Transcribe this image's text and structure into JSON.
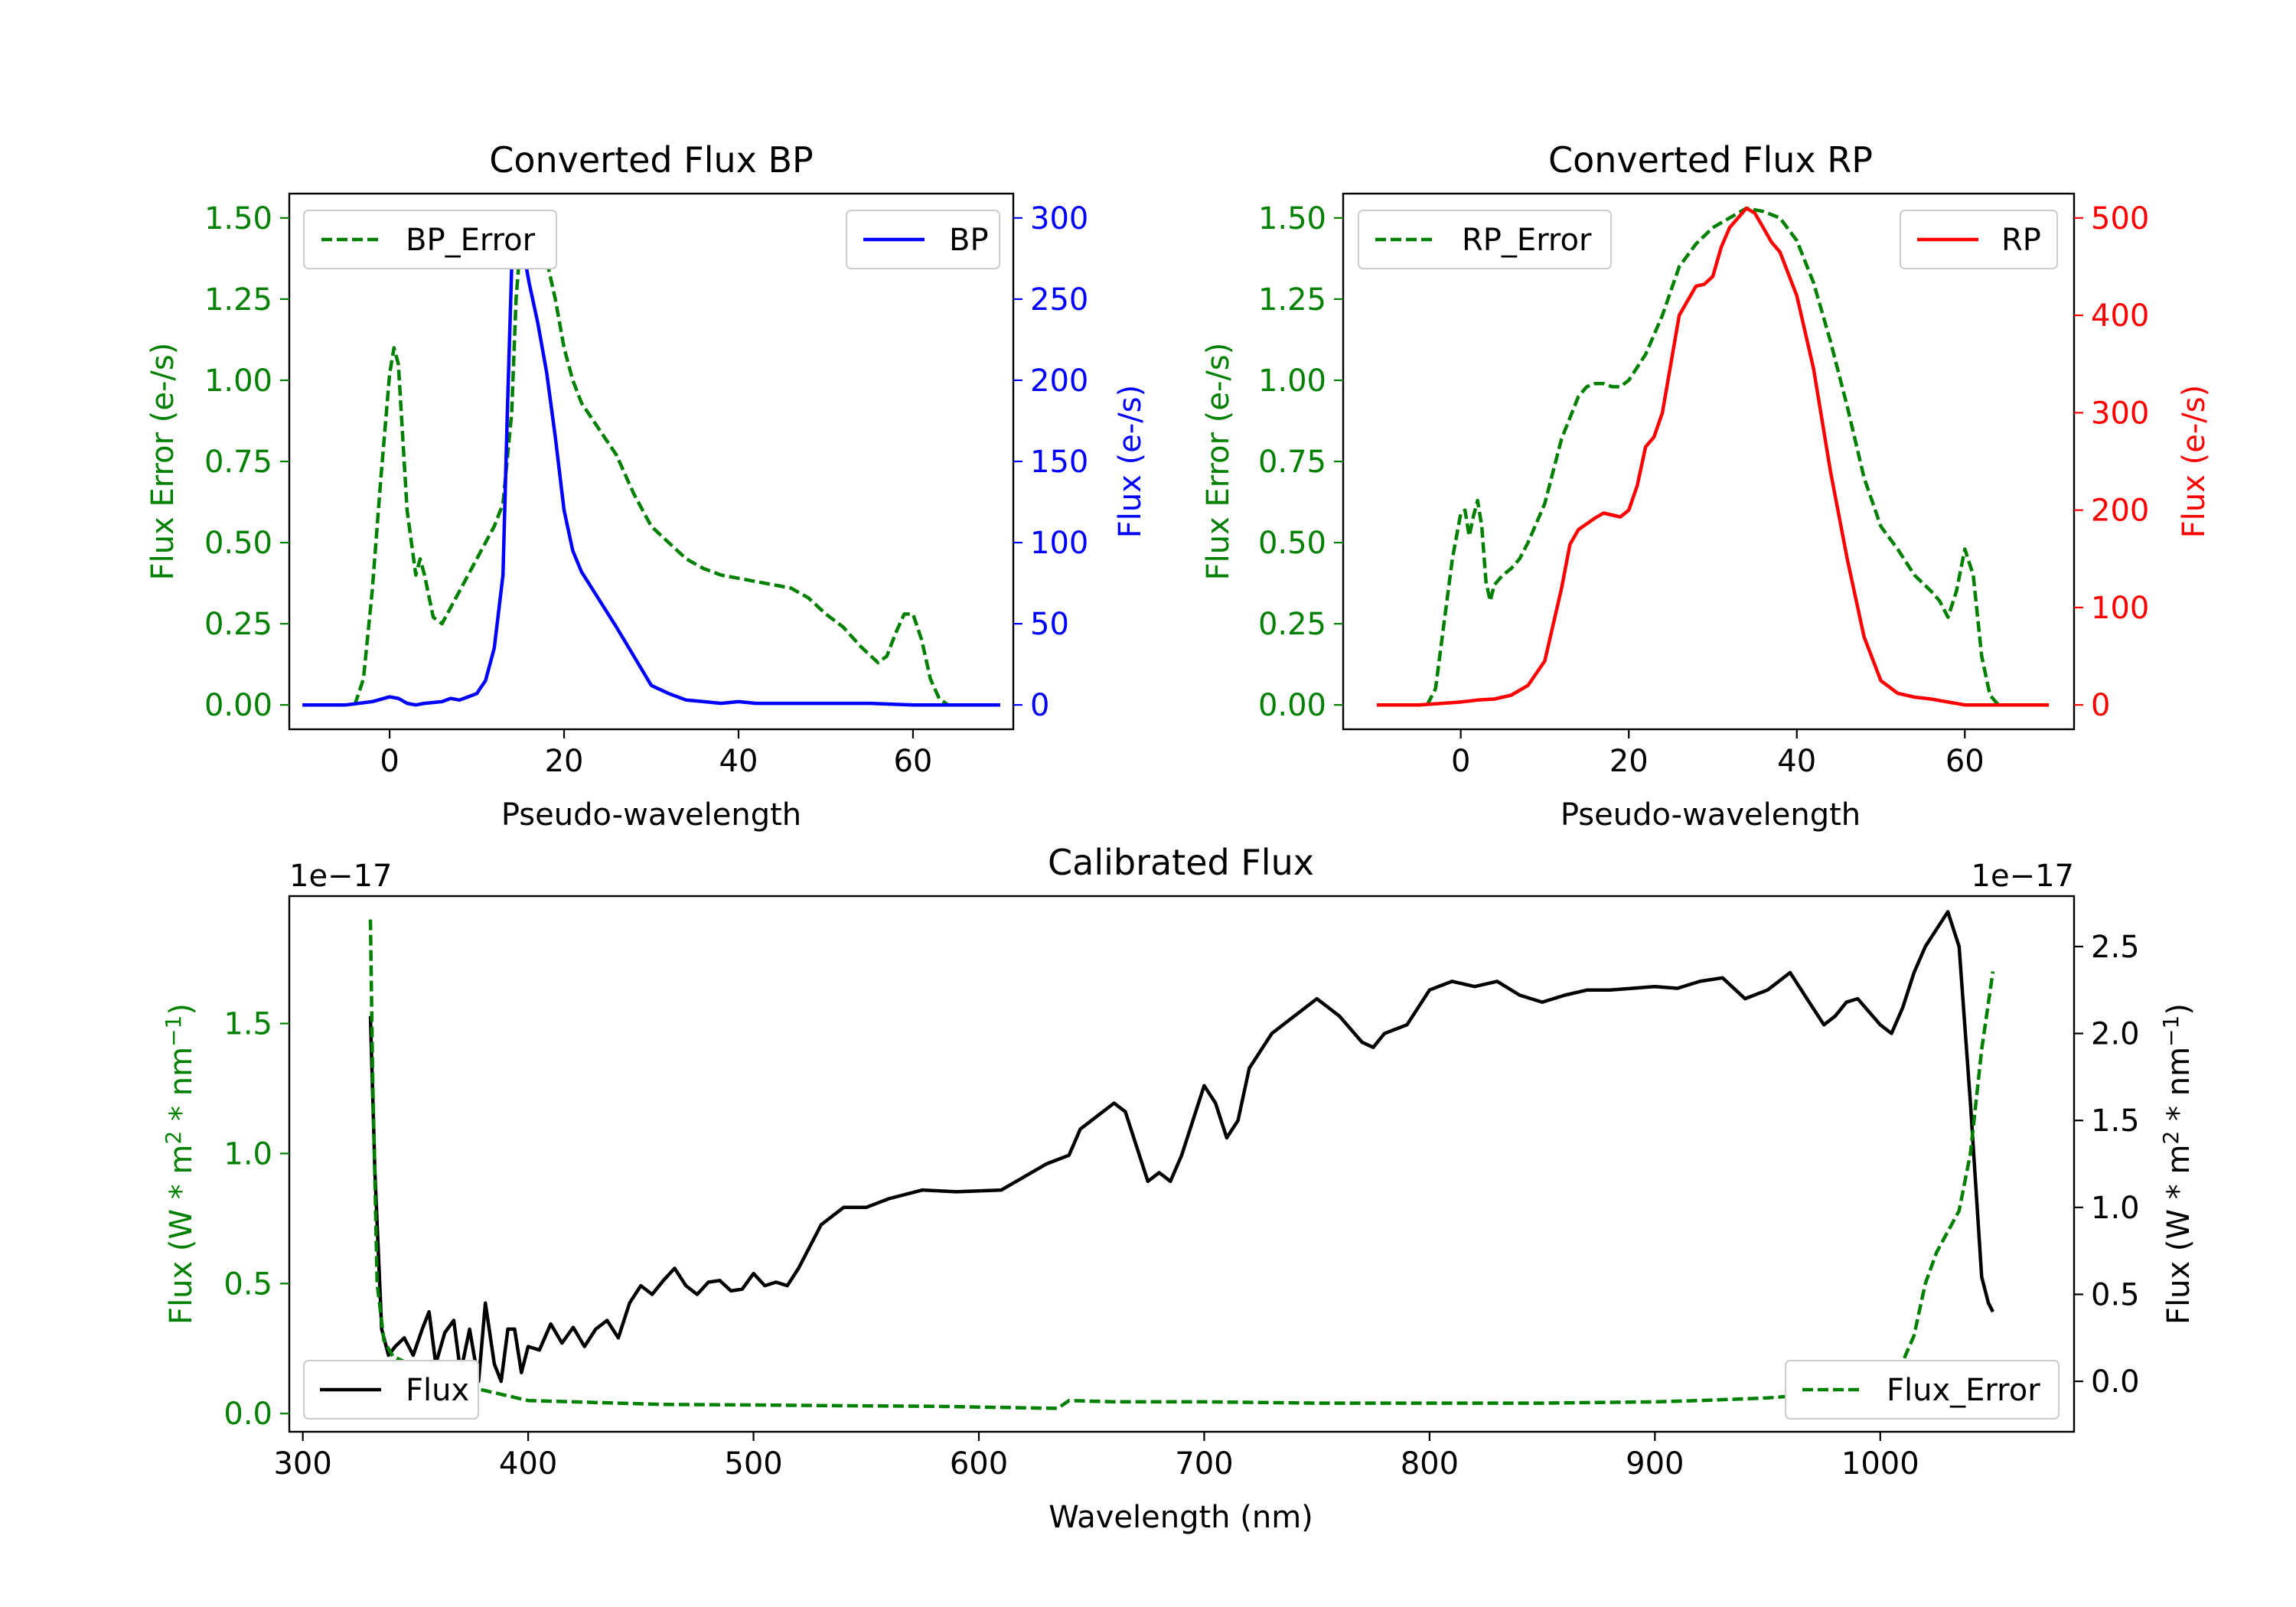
{
  "colors": {
    "error": "#008000",
    "bp": "#0000ff",
    "rp": "#ff0000",
    "flux": "#000000"
  },
  "chart_data": [
    {
      "id": "bp",
      "type": "line",
      "title": "Converted Flux BP",
      "xlabel": "Pseudo-wavelength",
      "ylabel_left": "Flux Error (e-/s)",
      "ylabel_right": "Flux (e-/s)",
      "xlim": [
        -11.5,
        71.5
      ],
      "ylim_left": [
        -0.075,
        1.575
      ],
      "ylim_right": [
        -15,
        315
      ],
      "xticks": [
        0,
        20,
        40,
        60
      ],
      "yticks_left": [
        0.0,
        0.25,
        0.5,
        0.75,
        1.0,
        1.25,
        1.5
      ],
      "yticks_right": [
        0,
        50,
        100,
        150,
        200,
        250,
        300
      ],
      "xtick_labels": [
        "0",
        "20",
        "40",
        "60"
      ],
      "ytick_labels_left": [
        "0.00",
        "0.25",
        "0.50",
        "0.75",
        "1.00",
        "1.25",
        "1.50"
      ],
      "ytick_labels_right": [
        "0",
        "50",
        "100",
        "150",
        "200",
        "250",
        "300"
      ],
      "legend_left": "BP_Error",
      "legend_right": "BP",
      "series": [
        {
          "name": "BP_Error",
          "axis": "left",
          "style": "dashed",
          "color": "#008000",
          "x": [
            -4,
            -3,
            -2,
            -1,
            0,
            0.5,
            1,
            2,
            3,
            3.5,
            4,
            5,
            6,
            7,
            8,
            10,
            12,
            13,
            14,
            14.5,
            15,
            16,
            17,
            18,
            19,
            20,
            21,
            22,
            24,
            26,
            28,
            30,
            32,
            34,
            36,
            38,
            40,
            42,
            44,
            46,
            48,
            50,
            52,
            54,
            56,
            57,
            58,
            59,
            60,
            61,
            62,
            63,
            64
          ],
          "y": [
            0.0,
            0.08,
            0.35,
            0.7,
            1.02,
            1.1,
            1.05,
            0.6,
            0.4,
            0.45,
            0.4,
            0.27,
            0.25,
            0.3,
            0.35,
            0.45,
            0.55,
            0.62,
            0.9,
            1.25,
            1.42,
            1.45,
            1.41,
            1.37,
            1.25,
            1.1,
            1.0,
            0.93,
            0.85,
            0.77,
            0.65,
            0.55,
            0.5,
            0.45,
            0.42,
            0.4,
            0.39,
            0.38,
            0.37,
            0.36,
            0.33,
            0.28,
            0.24,
            0.18,
            0.13,
            0.15,
            0.22,
            0.28,
            0.28,
            0.2,
            0.08,
            0.02,
            0.0
          ]
        },
        {
          "name": "BP",
          "axis": "right",
          "style": "solid",
          "color": "#0000ff",
          "x": [
            -10,
            -5,
            -2,
            0,
            1,
            2,
            3,
            4,
            6,
            7,
            8,
            9,
            10,
            11,
            12,
            13,
            13.5,
            14,
            14.5,
            15,
            15.5,
            16,
            17,
            18,
            19,
            20,
            21,
            22,
            24,
            26,
            28,
            30,
            32,
            34,
            36,
            38,
            40,
            42,
            44,
            48,
            55,
            60,
            65,
            70
          ],
          "y": [
            0,
            0,
            2,
            5,
            4,
            1,
            0,
            1,
            2,
            4,
            3,
            5,
            7,
            15,
            35,
            80,
            180,
            270,
            300,
            298,
            275,
            260,
            235,
            205,
            165,
            120,
            95,
            82,
            65,
            48,
            30,
            12,
            7,
            3,
            2,
            1,
            2,
            1,
            1,
            1,
            1,
            0,
            0,
            0
          ]
        }
      ]
    },
    {
      "id": "rp",
      "type": "line",
      "title": "Converted Flux RP",
      "xlabel": "Pseudo-wavelength",
      "ylabel_left": "Flux Error (e-/s)",
      "ylabel_right": "Flux (e-/s)",
      "xlim": [
        -14,
        73
      ],
      "ylim_left": [
        -0.075,
        1.575
      ],
      "ylim_right": [
        -25,
        525
      ],
      "xticks": [
        0,
        20,
        40,
        60
      ],
      "yticks_left": [
        0.0,
        0.25,
        0.5,
        0.75,
        1.0,
        1.25,
        1.5
      ],
      "yticks_right": [
        0,
        100,
        200,
        300,
        400,
        500
      ],
      "xtick_labels": [
        "0",
        "20",
        "40",
        "60"
      ],
      "ytick_labels_left": [
        "0.00",
        "0.25",
        "0.50",
        "0.75",
        "1.00",
        "1.25",
        "1.50"
      ],
      "ytick_labels_right": [
        "0",
        "100",
        "200",
        "300",
        "400",
        "500"
      ],
      "legend_left": "RP_Error",
      "legend_right": "RP",
      "series": [
        {
          "name": "RP_Error",
          "axis": "left",
          "style": "dashed",
          "color": "#008000",
          "x": [
            -4,
            -3,
            -2,
            -1,
            0,
            0.5,
            1,
            1.5,
            2,
            2.5,
            3,
            3.5,
            4,
            5,
            6,
            7,
            8,
            10,
            12,
            14,
            15,
            16,
            17,
            18,
            19,
            20,
            21,
            22,
            24,
            26,
            28,
            30,
            32,
            34,
            36,
            38,
            40,
            42,
            44,
            46,
            48,
            50,
            52,
            54,
            56,
            57,
            58,
            59,
            60,
            61,
            62,
            63,
            64
          ],
          "y": [
            0.0,
            0.05,
            0.25,
            0.45,
            0.59,
            0.6,
            0.52,
            0.58,
            0.63,
            0.55,
            0.38,
            0.32,
            0.37,
            0.4,
            0.42,
            0.45,
            0.5,
            0.62,
            0.82,
            0.95,
            0.98,
            0.99,
            0.99,
            0.98,
            0.98,
            1.0,
            1.04,
            1.08,
            1.2,
            1.35,
            1.42,
            1.47,
            1.5,
            1.53,
            1.52,
            1.5,
            1.43,
            1.3,
            1.12,
            0.92,
            0.7,
            0.55,
            0.48,
            0.4,
            0.35,
            0.32,
            0.27,
            0.35,
            0.48,
            0.4,
            0.15,
            0.03,
            0.0
          ]
        },
        {
          "name": "RP",
          "axis": "right",
          "style": "solid",
          "color": "#ff0000",
          "x": [
            -10,
            -5,
            0,
            2,
            4,
            6,
            8,
            10,
            12,
            13,
            14,
            16,
            17,
            18,
            19,
            20,
            21,
            22,
            23,
            24,
            26,
            28,
            29,
            30,
            31,
            32,
            34,
            35,
            36,
            37,
            38,
            40,
            42,
            44,
            46,
            48,
            50,
            52,
            54,
            56,
            58,
            60,
            65,
            70
          ],
          "y": [
            0,
            0,
            3,
            5,
            6,
            10,
            20,
            45,
            120,
            165,
            180,
            192,
            197,
            195,
            193,
            200,
            225,
            265,
            275,
            300,
            400,
            430,
            432,
            440,
            470,
            490,
            510,
            505,
            490,
            475,
            465,
            420,
            345,
            240,
            150,
            70,
            25,
            12,
            8,
            6,
            3,
            0,
            0,
            0
          ]
        }
      ]
    },
    {
      "id": "calibrated",
      "type": "line",
      "title": "Calibrated Flux",
      "xlabel": "Wavelength (nm)",
      "ylabel_left": "Flux (W * m2 * nm-1)",
      "ylabel_right": "Flux (W * m2 * nm-1)",
      "offset_left": "1e−17",
      "offset_right": "1e−17",
      "xlim": [
        294,
        1086
      ],
      "ylim_left": [
        -0.07,
        1.99
      ],
      "ylim_right": [
        -0.29,
        2.79
      ],
      "xticks": [
        300,
        400,
        500,
        600,
        700,
        800,
        900,
        1000
      ],
      "yticks_left": [
        0.0,
        0.5,
        1.0,
        1.5
      ],
      "yticks_right": [
        0.0,
        0.5,
        1.0,
        1.5,
        2.0,
        2.5
      ],
      "xtick_labels": [
        "300",
        "400",
        "500",
        "600",
        "700",
        "800",
        "900",
        "1000"
      ],
      "ytick_labels_left": [
        "0.0",
        "0.5",
        "1.0",
        "1.5"
      ],
      "ytick_labels_right": [
        "0.0",
        "0.5",
        "1.0",
        "1.5",
        "2.0",
        "2.5"
      ],
      "legend_left": "Flux",
      "legend_right": "Flux_Error",
      "series": [
        {
          "name": "Flux",
          "axis": "right",
          "style": "solid",
          "color": "#000000",
          "x": [
            330,
            332,
            335,
            338,
            341,
            345,
            349,
            353,
            356,
            359,
            363,
            367,
            370,
            374,
            378,
            381,
            385,
            388,
            391,
            394,
            397,
            400,
            405,
            410,
            415,
            420,
            425,
            430,
            435,
            440,
            445,
            450,
            455,
            460,
            465,
            470,
            475,
            480,
            485,
            490,
            495,
            500,
            505,
            510,
            515,
            520,
            530,
            540,
            550,
            560,
            575,
            590,
            610,
            630,
            640,
            645,
            650,
            660,
            665,
            670,
            675,
            680,
            685,
            690,
            700,
            705,
            710,
            715,
            720,
            730,
            740,
            750,
            760,
            770,
            775,
            780,
            790,
            800,
            810,
            820,
            830,
            840,
            850,
            860,
            870,
            880,
            890,
            900,
            910,
            920,
            930,
            940,
            950,
            960,
            970,
            975,
            980,
            985,
            990,
            1000,
            1005,
            1010,
            1015,
            1020,
            1025,
            1030,
            1035,
            1040,
            1045,
            1048,
            1050
          ],
          "y": [
            2.1,
            1.2,
            0.3,
            0.15,
            0.2,
            0.25,
            0.15,
            0.3,
            0.4,
            0.1,
            0.28,
            0.35,
            0.05,
            0.3,
            0.0,
            0.45,
            0.1,
            0.0,
            0.3,
            0.3,
            0.05,
            0.2,
            0.18,
            0.33,
            0.22,
            0.31,
            0.2,
            0.3,
            0.35,
            0.25,
            0.45,
            0.55,
            0.5,
            0.58,
            0.65,
            0.55,
            0.5,
            0.57,
            0.58,
            0.52,
            0.53,
            0.62,
            0.55,
            0.57,
            0.55,
            0.65,
            0.9,
            1.0,
            1.0,
            1.05,
            1.1,
            1.09,
            1.1,
            1.25,
            1.3,
            1.45,
            1.5,
            1.6,
            1.55,
            1.35,
            1.15,
            1.2,
            1.15,
            1.3,
            1.7,
            1.6,
            1.4,
            1.5,
            1.8,
            2.0,
            2.1,
            2.2,
            2.1,
            1.95,
            1.92,
            2.0,
            2.05,
            2.25,
            2.3,
            2.27,
            2.3,
            2.22,
            2.18,
            2.22,
            2.25,
            2.25,
            2.26,
            2.27,
            2.26,
            2.3,
            2.32,
            2.2,
            2.25,
            2.35,
            2.15,
            2.05,
            2.1,
            2.18,
            2.2,
            2.05,
            2.0,
            2.15,
            2.35,
            2.5,
            2.6,
            2.7,
            2.5,
            1.6,
            0.6,
            0.45,
            0.4
          ]
        },
        {
          "name": "Flux_Error",
          "axis": "left",
          "style": "dashed",
          "color": "#008000",
          "x": [
            330,
            331,
            333,
            336,
            340,
            345,
            350,
            355,
            360,
            370,
            380,
            390,
            400,
            420,
            440,
            460,
            500,
            540,
            580,
            600,
            620,
            635,
            640,
            660,
            700,
            750,
            800,
            850,
            900,
            920,
            950,
            980,
            1000,
            1010,
            1015,
            1020,
            1025,
            1030,
            1035,
            1040,
            1045,
            1050
          ],
          "y": [
            1.9,
            1.3,
            0.5,
            0.28,
            0.22,
            0.2,
            0.17,
            0.14,
            0.12,
            0.1,
            0.09,
            0.07,
            0.05,
            0.045,
            0.04,
            0.035,
            0.033,
            0.03,
            0.028,
            0.025,
            0.022,
            0.02,
            0.05,
            0.045,
            0.045,
            0.04,
            0.04,
            0.04,
            0.045,
            0.05,
            0.06,
            0.08,
            0.12,
            0.2,
            0.3,
            0.5,
            0.62,
            0.7,
            0.78,
            1.0,
            1.4,
            1.7
          ]
        }
      ]
    }
  ]
}
